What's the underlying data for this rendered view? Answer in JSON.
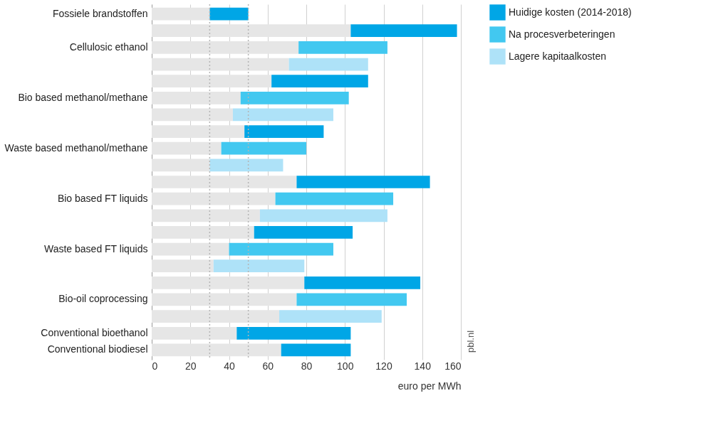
{
  "chart_data": {
    "type": "bar",
    "orientation": "horizontal",
    "stacked": true,
    "categories": [
      "Fossiele brandstoffen",
      null,
      "Cellulosic ethanol",
      null,
      null,
      "Bio based methanol/methane",
      null,
      null,
      "Waste based methanol/methane",
      null,
      null,
      "Bio based FT liquids",
      null,
      null,
      "Waste based FT liquids",
      null,
      null,
      "Bio-oil coprocessing",
      null,
      "Conventional bioethanol",
      "Conventional biodiesel"
    ],
    "series": [
      {
        "color": "#e6e6e6",
        "values": [
          30,
          103,
          76,
          71,
          62,
          46,
          42,
          48,
          36,
          30,
          75,
          64,
          56,
          53,
          40,
          32,
          79,
          75,
          66,
          44,
          67
        ]
      },
      {
        "name": "Huidige kosten (2014-2018)",
        "color": "#00a6e6",
        "values": [
          20,
          55,
          null,
          null,
          50,
          null,
          null,
          41,
          null,
          null,
          69,
          null,
          null,
          51,
          null,
          null,
          60,
          null,
          null,
          59,
          36
        ]
      },
      {
        "name": "Na procesverbeteringen",
        "color": "#42c8f0",
        "values": [
          null,
          null,
          46,
          null,
          null,
          56,
          null,
          null,
          44,
          null,
          null,
          61,
          null,
          null,
          54,
          null,
          null,
          57,
          null,
          null,
          null
        ]
      },
      {
        "name": "Lagere kapitaalkosten",
        "color": "#aee2f8",
        "values": [
          null,
          null,
          null,
          41,
          null,
          null,
          52,
          null,
          null,
          38,
          null,
          null,
          66,
          null,
          null,
          47,
          null,
          null,
          53,
          null,
          null
        ]
      }
    ],
    "xlim": [
      0,
      160
    ],
    "xticks": [
      0,
      20,
      40,
      60,
      80,
      100,
      120,
      140,
      160
    ],
    "xlabel": "euro per MWh",
    "ref_lines": [
      {
        "axis": "x",
        "value": 30,
        "color": "#b4b4b4",
        "line_style": "dotted"
      },
      {
        "axis": "x",
        "value": 50,
        "color": "#b4b4b4",
        "line_style": "dotted"
      }
    ],
    "annotations": [
      "pbl.nl"
    ],
    "grid": "x",
    "legend": "top right"
  }
}
